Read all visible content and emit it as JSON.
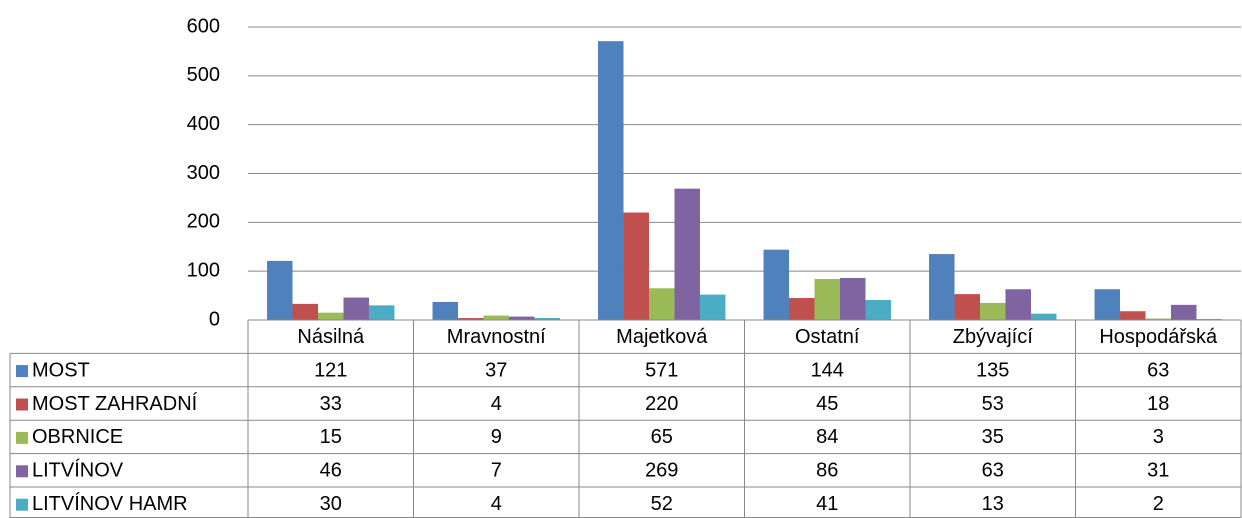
{
  "chart_data": {
    "type": "bar",
    "categories": [
      "Násilná",
      "Mravnostní",
      "Majetková",
      "Ostatní",
      "Zbývající",
      "Hospodářská"
    ],
    "series": [
      {
        "name": "MOST",
        "color": "#4f81bd",
        "values": [
          121,
          37,
          571,
          144,
          135,
          63
        ]
      },
      {
        "name": "MOST ZAHRADNÍ",
        "color": "#c0504d",
        "values": [
          33,
          4,
          220,
          45,
          53,
          18
        ]
      },
      {
        "name": "OBRNICE",
        "color": "#9bbb59",
        "values": [
          15,
          9,
          65,
          84,
          35,
          3
        ]
      },
      {
        "name": "LITVÍNOV",
        "color": "#8064a2",
        "values": [
          46,
          7,
          269,
          86,
          63,
          31
        ]
      },
      {
        "name": "LITVÍNOV HAMR",
        "color": "#4bacc6",
        "values": [
          30,
          4,
          52,
          41,
          13,
          2
        ]
      }
    ],
    "ylim": [
      0,
      600
    ],
    "yticks": [
      0,
      100,
      200,
      300,
      400,
      500,
      600
    ],
    "grid": true
  }
}
